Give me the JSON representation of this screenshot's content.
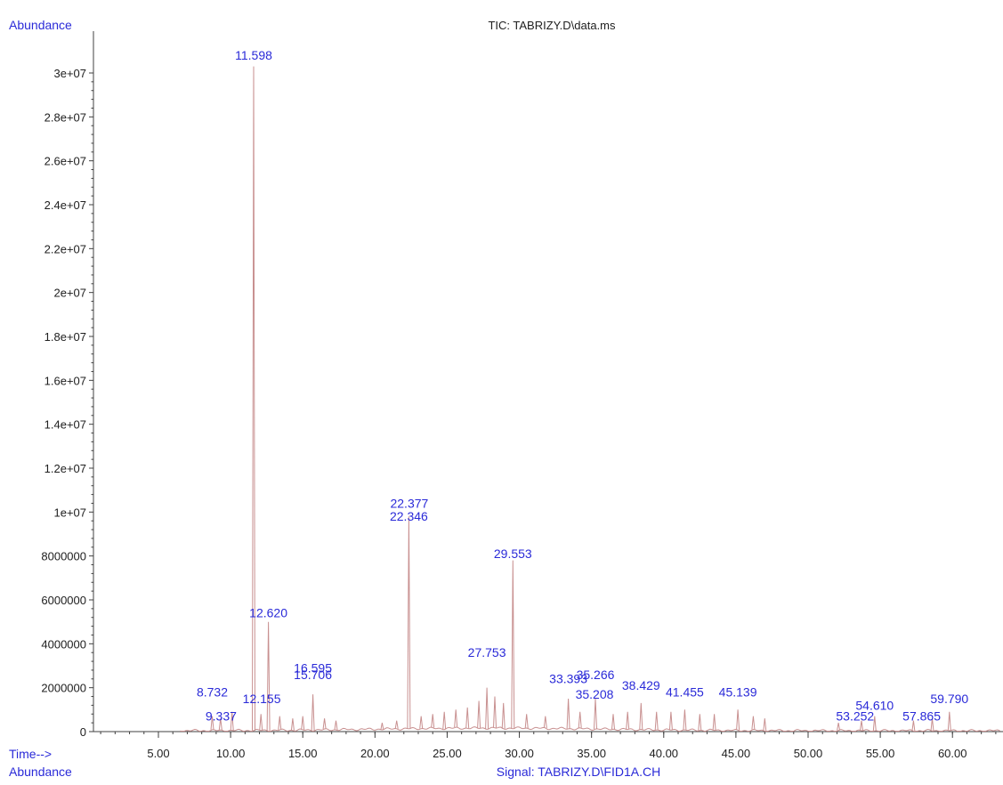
{
  "chart_data": {
    "type": "line",
    "title": "TIC: TABRIZY.D\\data.ms",
    "ylabel": "Abundance",
    "xlabel": "Time-->",
    "footer_left": "Abundance",
    "footer_signal": "Signal: TABRIZY.D\\FID1A.CH",
    "xlim": [
      0.5,
      63.5
    ],
    "ylim": [
      0,
      31500000
    ],
    "x_ticks": [
      5,
      10,
      15,
      20,
      25,
      30,
      35,
      40,
      45,
      50,
      55,
      60
    ],
    "x_tick_labels": [
      "5.00",
      "10.00",
      "15.00",
      "20.00",
      "25.00",
      "30.00",
      "35.00",
      "40.00",
      "45.00",
      "50.00",
      "55.00",
      "60.00"
    ],
    "y_ticks": [
      0,
      2000000,
      4000000,
      6000000,
      8000000,
      10000000,
      12000000,
      14000000,
      16000000,
      18000000,
      20000000,
      22000000,
      24000000,
      26000000,
      28000000,
      30000000
    ],
    "y_tick_labels": [
      "0",
      "2000000",
      "4000000",
      "6000000",
      "8000000",
      "1e+07",
      "1.2e+07",
      "1.4e+07",
      "1.6e+07",
      "1.8e+07",
      "2e+07",
      "2.2e+07",
      "2.4e+07",
      "2.6e+07",
      "2.8e+07",
      "3e+07"
    ],
    "grid": false,
    "series": [
      {
        "color": "#c89090",
        "peaks": [
          {
            "x": 8.732,
            "y": 700000
          },
          {
            "x": 9.3,
            "y": 600000
          },
          {
            "x": 10.1,
            "y": 900000
          },
          {
            "x": 11.598,
            "y": 30300000
          },
          {
            "x": 12.1,
            "y": 800000
          },
          {
            "x": 12.62,
            "y": 5000000
          },
          {
            "x": 13.4,
            "y": 700000
          },
          {
            "x": 14.3,
            "y": 600000
          },
          {
            "x": 15.0,
            "y": 700000
          },
          {
            "x": 15.7,
            "y": 1700000
          },
          {
            "x": 16.5,
            "y": 600000
          },
          {
            "x": 17.3,
            "y": 500000
          },
          {
            "x": 20.5,
            "y": 400000
          },
          {
            "x": 21.5,
            "y": 500000
          },
          {
            "x": 22.346,
            "y": 9800000
          },
          {
            "x": 23.2,
            "y": 700000
          },
          {
            "x": 24.0,
            "y": 800000
          },
          {
            "x": 24.8,
            "y": 900000
          },
          {
            "x": 25.6,
            "y": 1000000
          },
          {
            "x": 26.4,
            "y": 1100000
          },
          {
            "x": 27.2,
            "y": 1400000
          },
          {
            "x": 27.753,
            "y": 2000000
          },
          {
            "x": 28.3,
            "y": 1600000
          },
          {
            "x": 28.9,
            "y": 1300000
          },
          {
            "x": 29.553,
            "y": 7800000
          },
          {
            "x": 30.5,
            "y": 800000
          },
          {
            "x": 31.8,
            "y": 700000
          },
          {
            "x": 33.393,
            "y": 1500000
          },
          {
            "x": 34.2,
            "y": 900000
          },
          {
            "x": 35.266,
            "y": 1500000
          },
          {
            "x": 36.5,
            "y": 800000
          },
          {
            "x": 37.5,
            "y": 900000
          },
          {
            "x": 38.429,
            "y": 1300000
          },
          {
            "x": 39.5,
            "y": 900000
          },
          {
            "x": 40.5,
            "y": 900000
          },
          {
            "x": 41.455,
            "y": 1000000
          },
          {
            "x": 42.5,
            "y": 800000
          },
          {
            "x": 43.5,
            "y": 800000
          },
          {
            "x": 45.139,
            "y": 1000000
          },
          {
            "x": 46.2,
            "y": 700000
          },
          {
            "x": 47.0,
            "y": 600000
          },
          {
            "x": 52.1,
            "y": 400000
          },
          {
            "x": 53.7,
            "y": 500000
          },
          {
            "x": 54.61,
            "y": 700000
          },
          {
            "x": 57.3,
            "y": 500000
          },
          {
            "x": 58.6,
            "y": 600000
          },
          {
            "x": 59.79,
            "y": 900000
          }
        ]
      }
    ],
    "annotations": [
      {
        "text": "11.598",
        "x": 11.598,
        "y": 30600000
      },
      {
        "text": "12.620",
        "x": 12.62,
        "y": 5200000
      },
      {
        "text": "22.377",
        "x": 22.377,
        "y": 10200000
      },
      {
        "text": "22.346",
        "x": 22.346,
        "y": 9600000
      },
      {
        "text": "29.553",
        "x": 29.553,
        "y": 7900000
      },
      {
        "text": "27.753",
        "x": 27.753,
        "y": 3400000
      },
      {
        "text": "16.595",
        "x": 15.7,
        "y": 2700000
      },
      {
        "text": "15.706",
        "x": 15.7,
        "y": 2400000
      },
      {
        "text": "8.732",
        "x": 8.732,
        "y": 1600000
      },
      {
        "text": "33.393",
        "x": 33.393,
        "y": 2200000
      },
      {
        "text": "35.266",
        "x": 35.266,
        "y": 2400000
      },
      {
        "text": "35.208",
        "x": 35.208,
        "y": 1500000
      },
      {
        "text": "38.429",
        "x": 38.429,
        "y": 1900000
      },
      {
        "text": "41.455",
        "x": 41.455,
        "y": 1600000
      },
      {
        "text": "45.139",
        "x": 45.139,
        "y": 1600000
      },
      {
        "text": "54.610",
        "x": 54.61,
        "y": 1000000
      },
      {
        "text": "59.790",
        "x": 59.79,
        "y": 1300000
      },
      {
        "text": "9.337",
        "x": 9.337,
        "y": 500000
      },
      {
        "text": "12.155",
        "x": 12.155,
        "y": 1300000
      },
      {
        "text": "53.252",
        "x": 53.252,
        "y": 500000
      },
      {
        "text": "57.865",
        "x": 57.865,
        "y": 500000
      }
    ]
  }
}
